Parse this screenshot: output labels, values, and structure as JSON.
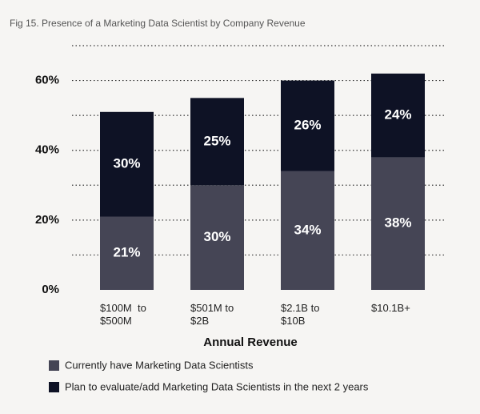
{
  "chart_data": {
    "type": "stacked_bar",
    "title": "Fig 15. Presence of a Marketing Data Scientist by Company Revenue",
    "x_label": "Annual Revenue",
    "categories": [
      "$100M  to\n$500M",
      "$501M to\n$2B",
      "$2.1B to\n$10B",
      "$10.1B+"
    ],
    "series": [
      {
        "name": "Currently have Marketing Data Scientists",
        "color": "#454555",
        "values": [
          21,
          30,
          34,
          38
        ],
        "value_labels": [
          "21%",
          "30%",
          "34%",
          "38%"
        ]
      },
      {
        "name": "Plan to evaluate/add Marketing Data Scientists in the next 2 years",
        "color": "#0e1225",
        "values": [
          30,
          25,
          26,
          24
        ],
        "value_labels": [
          "30%",
          "25%",
          "26%",
          "24%"
        ]
      }
    ],
    "ylim": [
      0,
      70
    ],
    "yticks": [
      {
        "value": 0,
        "label": "0%"
      },
      {
        "value": 20,
        "label": "20%"
      },
      {
        "value": 40,
        "label": "40%"
      },
      {
        "value": 60,
        "label": "60%"
      }
    ],
    "yminorticks": [
      10,
      30,
      50,
      70
    ],
    "grid": true
  }
}
